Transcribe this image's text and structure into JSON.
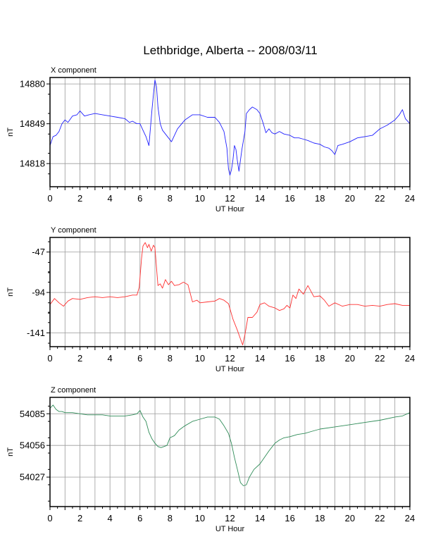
{
  "title": "Lethbridge, Alberta -- 2008/03/11",
  "chart_data": [
    {
      "type": "line",
      "title": "X component",
      "xlabel": "UT Hour",
      "ylabel": "nT",
      "xlim": [
        0,
        24
      ],
      "ylim": [
        14800,
        14885
      ],
      "xticks": [
        0,
        2,
        4,
        6,
        8,
        10,
        12,
        14,
        16,
        18,
        20,
        22,
        24
      ],
      "yticks": [
        14818,
        14849,
        14880
      ],
      "grid": true,
      "color": "#2020ff",
      "series": [
        {
          "x": [
            0,
            0.2,
            0.4,
            0.6,
            0.8,
            1.0,
            1.2,
            1.5,
            1.8,
            2.0,
            2.3,
            2.6,
            3.0,
            3.5,
            4.0,
            4.5,
            5.0,
            5.3,
            5.5,
            5.8,
            6.0,
            6.2,
            6.4,
            6.6,
            6.8,
            6.9,
            7.0,
            7.1,
            7.2,
            7.35,
            7.5,
            7.7,
            7.9,
            8.1,
            8.5,
            9.0,
            9.5,
            10.0,
            10.5,
            11.0,
            11.3,
            11.6,
            11.8,
            11.9,
            12.0,
            12.1,
            12.2,
            12.3,
            12.4,
            12.5,
            12.6,
            12.8,
            13.0,
            13.1,
            13.3,
            13.5,
            13.8,
            14.0,
            14.2,
            14.4,
            14.6,
            14.8,
            15.0,
            15.3,
            15.6,
            16.0,
            16.3,
            16.6,
            16.9,
            17.2,
            17.6,
            18.0,
            18.3,
            18.6,
            18.8,
            19.0,
            19.2,
            19.5,
            20.0,
            20.5,
            21.0,
            21.5,
            22.0,
            22.5,
            23.0,
            23.3,
            23.5,
            23.7,
            24.0
          ],
          "y": [
            14832,
            14839,
            14840,
            14843,
            14849,
            14852,
            14850,
            14855,
            14856,
            14859,
            14855,
            14856,
            14857,
            14856,
            14855,
            14854,
            14853,
            14850,
            14851,
            14849,
            14849,
            14844,
            14839,
            14832,
            14860,
            14872,
            14883,
            14878,
            14862,
            14849,
            14844,
            14841,
            14838,
            14835,
            14845,
            14852,
            14856,
            14856,
            14854,
            14854,
            14850,
            14843,
            14830,
            14814,
            14809,
            14813,
            14821,
            14832,
            14829,
            14820,
            14812,
            14829,
            14843,
            14857,
            14860,
            14862,
            14860,
            14857,
            14850,
            14842,
            14845,
            14842,
            14841,
            14843,
            14841,
            14840,
            14838,
            14838,
            14837,
            14836,
            14834,
            14833,
            14831,
            14830,
            14828,
            14825,
            14832,
            14833,
            14835,
            14838,
            14839,
            14840,
            14845,
            14848,
            14852,
            14856,
            14860,
            14853,
            14849
          ]
        }
      ]
    },
    {
      "type": "line",
      "title": "Y component",
      "xlabel": "UT Hour",
      "ylabel": "nT",
      "xlim": [
        0,
        24
      ],
      "ylim": [
        -157,
        -30
      ],
      "xticks": [
        0,
        2,
        4,
        6,
        8,
        10,
        12,
        14,
        16,
        18,
        20,
        22,
        24
      ],
      "yticks": [
        -47,
        -94,
        -141
      ],
      "grid": true,
      "color": "#ff3030",
      "series": [
        {
          "x": [
            0,
            0.3,
            0.6,
            0.9,
            1.2,
            1.5,
            2.0,
            2.5,
            3.0,
            3.5,
            4.0,
            4.5,
            5.0,
            5.5,
            5.8,
            5.95,
            6.1,
            6.2,
            6.35,
            6.5,
            6.6,
            6.75,
            6.9,
            7.0,
            7.1,
            7.2,
            7.35,
            7.5,
            7.7,
            7.9,
            8.1,
            8.3,
            8.6,
            8.9,
            9.2,
            9.5,
            9.8,
            10.0,
            10.5,
            11.0,
            11.3,
            11.6,
            11.9,
            12.2,
            12.5,
            12.7,
            12.85,
            13.0,
            13.2,
            13.5,
            13.8,
            14.0,
            14.3,
            14.6,
            15.0,
            15.3,
            15.6,
            15.8,
            16.0,
            16.2,
            16.4,
            16.6,
            16.9,
            17.2,
            17.6,
            18.0,
            18.3,
            18.6,
            19.0,
            19.5,
            20.0,
            20.5,
            21.0,
            21.5,
            22.0,
            22.5,
            23.0,
            23.5,
            24.0
          ],
          "y": [
            -108,
            -101,
            -106,
            -110,
            -104,
            -101,
            -102,
            -100,
            -99,
            -100,
            -99,
            -100,
            -99,
            -97,
            -97,
            -88,
            -55,
            -40,
            -36,
            -42,
            -38,
            -46,
            -39,
            -42,
            -65,
            -86,
            -84,
            -89,
            -79,
            -85,
            -81,
            -86,
            -85,
            -82,
            -85,
            -105,
            -103,
            -106,
            -105,
            -104,
            -101,
            -103,
            -107,
            -125,
            -138,
            -148,
            -155,
            -143,
            -123,
            -123,
            -117,
            -108,
            -106,
            -110,
            -112,
            -115,
            -113,
            -109,
            -112,
            -97,
            -101,
            -90,
            -96,
            -86,
            -99,
            -98,
            -103,
            -110,
            -106,
            -110,
            -108,
            -108,
            -110,
            -109,
            -110,
            -108,
            -107,
            -109,
            -109
          ]
        }
      ]
    },
    {
      "type": "line",
      "title": "Z component",
      "xlabel": "UT Hour",
      "ylabel": "nT",
      "xlim": [
        0,
        24
      ],
      "ylim": [
        14000,
        14100
      ],
      "ytick_labels": [
        "54085",
        "54056",
        "54027"
      ],
      "yticks": [
        14085,
        14056,
        14027
      ],
      "xticks": [
        0,
        2,
        4,
        6,
        8,
        10,
        12,
        14,
        16,
        18,
        20,
        22,
        24
      ],
      "grid": true,
      "color": "#2e8b57",
      "series": [
        {
          "x": [
            0,
            0.2,
            0.4,
            0.6,
            0.8,
            1.0,
            1.5,
            2.0,
            2.5,
            3.0,
            3.5,
            4.0,
            4.5,
            5.0,
            5.5,
            5.8,
            6.0,
            6.2,
            6.4,
            6.6,
            6.8,
            7.0,
            7.2,
            7.4,
            7.6,
            7.8,
            8.0,
            8.3,
            8.6,
            9.0,
            9.5,
            10.0,
            10.5,
            11.0,
            11.3,
            11.6,
            11.9,
            12.1,
            12.3,
            12.5,
            12.7,
            12.9,
            13.1,
            13.3,
            13.6,
            14.0,
            14.3,
            14.6,
            15.0,
            15.3,
            15.6,
            16.0,
            16.5,
            17.0,
            17.5,
            18.0,
            19.0,
            20.0,
            21.0,
            22.0,
            23.0,
            23.5,
            24.0
          ],
          "y": [
            14090,
            14093,
            14089,
            14087,
            14087,
            14086,
            14086,
            14085,
            14084,
            14084,
            14084,
            14083,
            14083,
            14083,
            14084,
            14085,
            14088,
            14082,
            14078,
            14068,
            14062,
            14058,
            14055,
            14054,
            14055,
            14056,
            14063,
            14065,
            14070,
            14074,
            14078,
            14080,
            14082,
            14082,
            14080,
            14074,
            14067,
            14058,
            14045,
            14034,
            14022,
            14019,
            14020,
            14027,
            14034,
            14039,
            14045,
            14051,
            14058,
            14061,
            14063,
            14064,
            14066,
            14067,
            14069,
            14071,
            14073,
            14075,
            14077,
            14079,
            14082,
            14083,
            14086
          ]
        }
      ]
    }
  ]
}
